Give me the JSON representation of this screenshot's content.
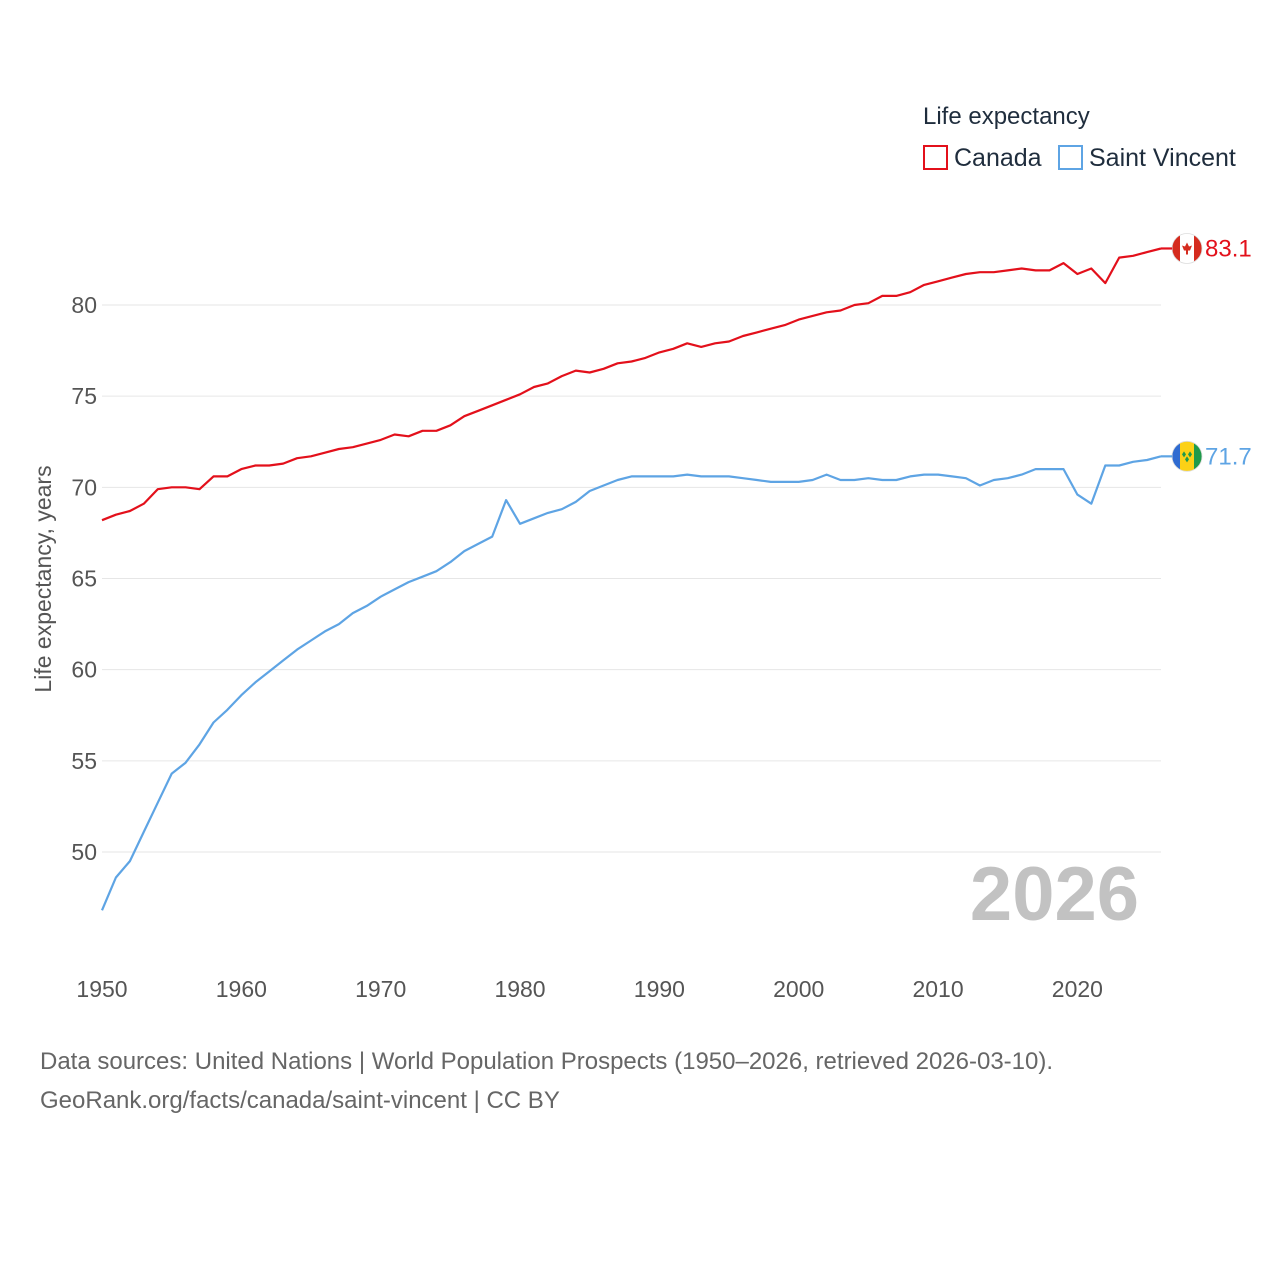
{
  "chart_data": {
    "type": "line",
    "title": "Life expectancy",
    "xlabel": "",
    "ylabel": "Life expectancy, years",
    "xlim": [
      1950,
      2026
    ],
    "ylim": [
      45,
      85
    ],
    "yticks": [
      50,
      55,
      60,
      65,
      70,
      75,
      80
    ],
    "xticks": [
      1950,
      1960,
      1970,
      1980,
      1990,
      2000,
      2010,
      2020
    ],
    "watermark_year": "2026",
    "legend_position": "top-right",
    "x": [
      1950,
      1951,
      1952,
      1953,
      1954,
      1955,
      1956,
      1957,
      1958,
      1959,
      1960,
      1961,
      1962,
      1963,
      1964,
      1965,
      1966,
      1967,
      1968,
      1969,
      1970,
      1971,
      1972,
      1973,
      1974,
      1975,
      1976,
      1977,
      1978,
      1979,
      1980,
      1981,
      1982,
      1983,
      1984,
      1985,
      1986,
      1987,
      1988,
      1989,
      1990,
      1991,
      1992,
      1993,
      1994,
      1995,
      1996,
      1997,
      1998,
      1999,
      2000,
      2001,
      2002,
      2003,
      2004,
      2005,
      2006,
      2007,
      2008,
      2009,
      2010,
      2011,
      2012,
      2013,
      2014,
      2015,
      2016,
      2017,
      2018,
      2019,
      2020,
      2021,
      2022,
      2023,
      2024,
      2025,
      2026
    ],
    "series": [
      {
        "name": "Canada",
        "color": "#e3101b",
        "end_label": "83.1",
        "flag": "canada-flag",
        "values": [
          68.2,
          68.5,
          68.7,
          69.1,
          69.9,
          70.0,
          70.0,
          69.9,
          70.6,
          70.6,
          71.0,
          71.2,
          71.2,
          71.3,
          71.6,
          71.7,
          71.9,
          72.1,
          72.2,
          72.4,
          72.6,
          72.9,
          72.8,
          73.1,
          73.1,
          73.4,
          73.9,
          74.2,
          74.5,
          74.8,
          75.1,
          75.5,
          75.7,
          76.1,
          76.4,
          76.3,
          76.5,
          76.8,
          76.9,
          77.1,
          77.4,
          77.6,
          77.9,
          77.7,
          77.9,
          78.0,
          78.3,
          78.5,
          78.7,
          78.9,
          79.2,
          79.4,
          79.6,
          79.7,
          80.0,
          80.1,
          80.5,
          80.5,
          80.7,
          81.1,
          81.3,
          81.5,
          81.7,
          81.8,
          81.8,
          81.9,
          82.0,
          81.9,
          81.9,
          82.3,
          81.7,
          82.0,
          81.2,
          82.6,
          82.7,
          82.9,
          83.1
        ]
      },
      {
        "name": "Saint Vincent",
        "color": "#5ea4e4",
        "end_label": "71.7",
        "flag": "saint-vincent-flag",
        "values": [
          46.8,
          48.6,
          49.5,
          51.1,
          52.7,
          54.3,
          54.9,
          55.9,
          57.1,
          57.8,
          58.6,
          59.3,
          59.9,
          60.5,
          61.1,
          61.6,
          62.1,
          62.5,
          63.1,
          63.5,
          64.0,
          64.4,
          64.8,
          65.1,
          65.4,
          65.9,
          66.5,
          66.9,
          67.3,
          69.3,
          68.0,
          68.3,
          68.6,
          68.8,
          69.2,
          69.8,
          70.1,
          70.4,
          70.6,
          70.6,
          70.6,
          70.6,
          70.7,
          70.6,
          70.6,
          70.6,
          70.5,
          70.4,
          70.3,
          70.3,
          70.3,
          70.4,
          70.7,
          70.4,
          70.4,
          70.5,
          70.4,
          70.4,
          70.6,
          70.7,
          70.7,
          70.6,
          70.5,
          70.1,
          70.4,
          70.5,
          70.7,
          71.0,
          71.0,
          71.0,
          69.6,
          69.1,
          71.2,
          71.2,
          71.4,
          71.5,
          71.7
        ]
      }
    ]
  },
  "footer": {
    "source_line": "Data sources: United Nations | World Population Prospects (1950–2026, retrieved 2026-03-10).",
    "site_line": "GeoRank.org/facts/canada/saint-vincent | CC BY"
  }
}
